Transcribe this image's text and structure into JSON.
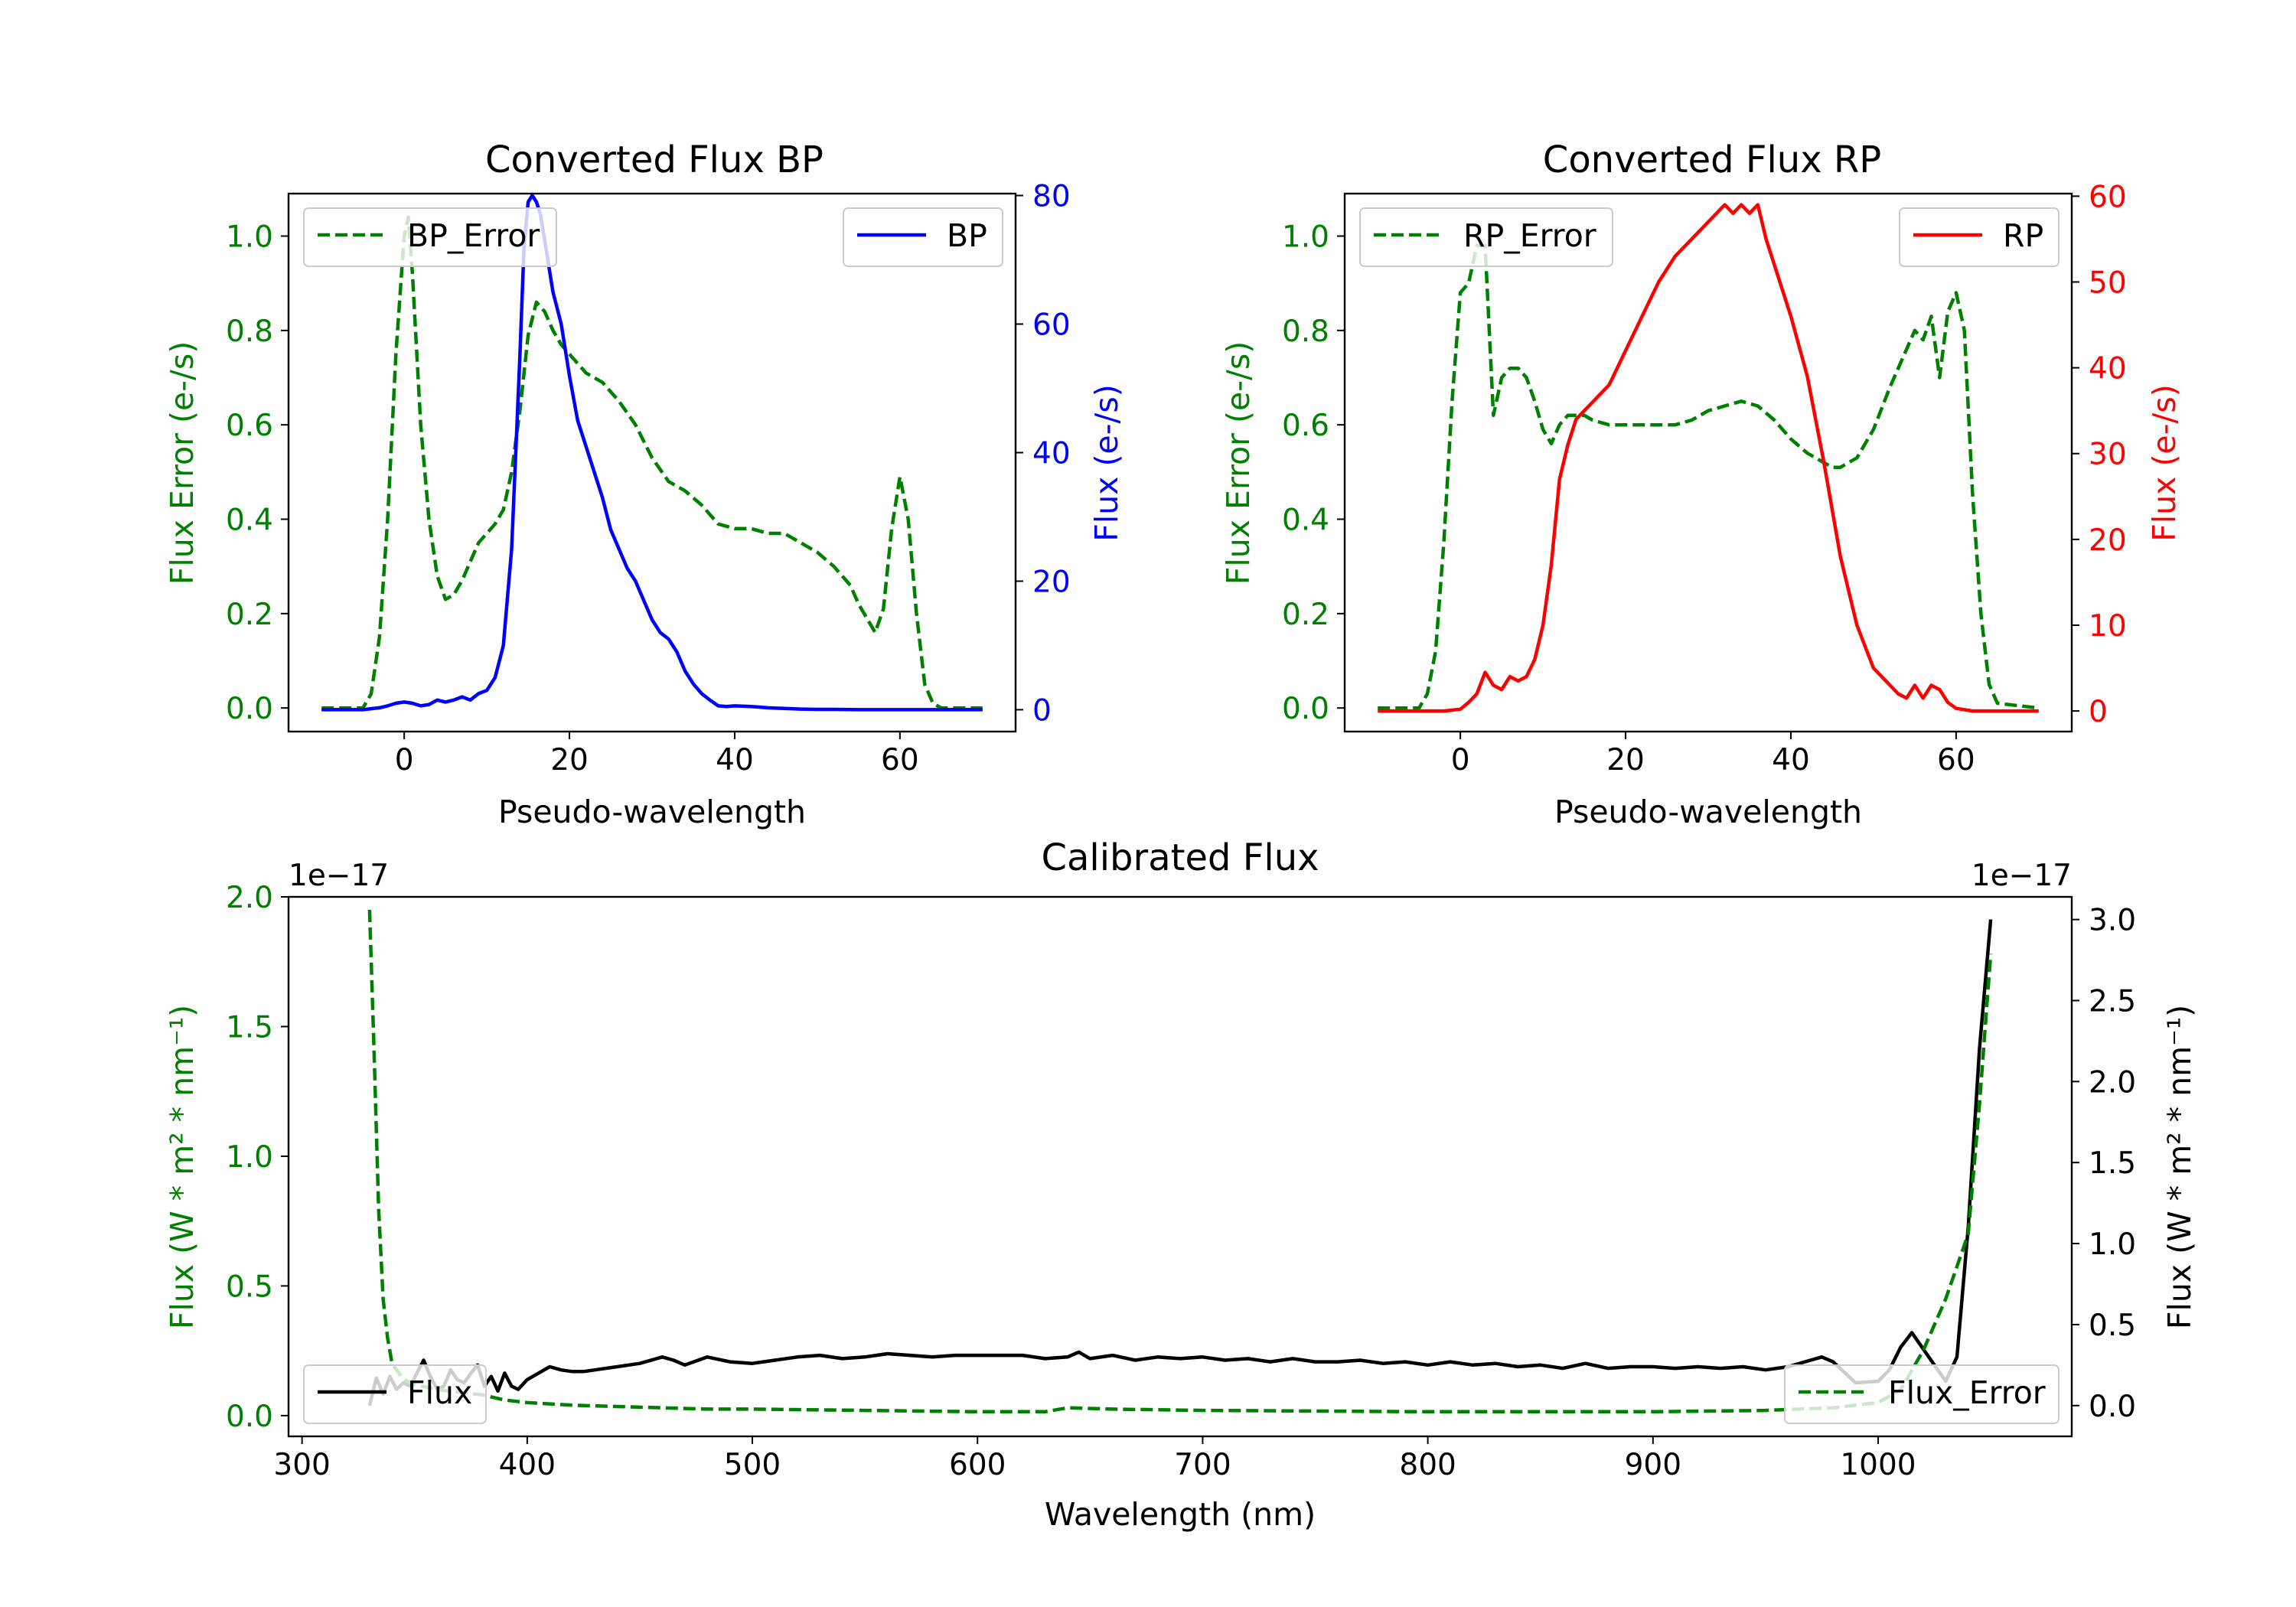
{
  "colors": {
    "error": "#008000",
    "bp": "#0000ff",
    "rp": "#ff0000",
    "flux": "#000000"
  },
  "chart_data": [
    {
      "id": "bp",
      "type": "line",
      "title": "Converted Flux BP",
      "xlabel": "Pseudo-wavelength",
      "ylabel_left": "Flux Error (e-/s)",
      "ylabel_right": "Flux (e-/s)",
      "xlim": [
        -14,
        74
      ],
      "ylim_left": [
        -0.05,
        1.09
      ],
      "ylim_right": [
        -3.4,
        80.3
      ],
      "xticks": [
        0,
        20,
        40,
        60
      ],
      "xticklabels": [
        "0",
        "20",
        "40",
        "60"
      ],
      "yticks_left": [
        0.0,
        0.2,
        0.4,
        0.6,
        0.8,
        1.0
      ],
      "yticklabels_left": [
        "0.0",
        "0.2",
        "0.4",
        "0.6",
        "0.8",
        "1.0"
      ],
      "yticks_right": [
        0,
        20,
        40,
        60,
        80
      ],
      "yticklabels_right": [
        "0",
        "20",
        "40",
        "60",
        "80"
      ],
      "legend_left": "BP_Error",
      "legend_right": "BP",
      "series": [
        {
          "name": "BP_Error",
          "axis": "left",
          "style": "dashed",
          "color": "#008000",
          "x": [
            -10,
            -5,
            -4,
            -3,
            -2,
            -1,
            0,
            0.5,
            1,
            2,
            3,
            4,
            5,
            6,
            7,
            8,
            9,
            10,
            11,
            12,
            13,
            14,
            15,
            16,
            17,
            18,
            19,
            20,
            22,
            24,
            26,
            28,
            30,
            32,
            34,
            36,
            38,
            40,
            42,
            44,
            46,
            48,
            50,
            52,
            54,
            55,
            56,
            57,
            58,
            59,
            60,
            61,
            62,
            63,
            64,
            65,
            70
          ],
          "y": [
            0,
            0,
            0.03,
            0.15,
            0.4,
            0.75,
            1.0,
            1.04,
            0.92,
            0.6,
            0.4,
            0.28,
            0.23,
            0.24,
            0.27,
            0.31,
            0.35,
            0.37,
            0.39,
            0.42,
            0.5,
            0.63,
            0.79,
            0.86,
            0.84,
            0.8,
            0.77,
            0.75,
            0.71,
            0.69,
            0.65,
            0.6,
            0.53,
            0.48,
            0.46,
            0.43,
            0.39,
            0.38,
            0.38,
            0.37,
            0.37,
            0.35,
            0.33,
            0.3,
            0.26,
            0.22,
            0.19,
            0.16,
            0.21,
            0.38,
            0.49,
            0.4,
            0.2,
            0.05,
            0.01,
            0,
            0
          ]
        },
        {
          "name": "BP",
          "axis": "right",
          "style": "solid",
          "color": "#0000ff",
          "x": [
            -10,
            -5,
            -3,
            -2,
            -1,
            0,
            1,
            2,
            3,
            4,
            5,
            6,
            7,
            8,
            9,
            10,
            11,
            12,
            13,
            14,
            14.5,
            15,
            15.5,
            16,
            16.5,
            17,
            18,
            19,
            20,
            21,
            22,
            23,
            24,
            25,
            26,
            27,
            28,
            29,
            30,
            31,
            32,
            33,
            34,
            35,
            36,
            37,
            38,
            39,
            40,
            42,
            44,
            46,
            48,
            50,
            52,
            55,
            60,
            65,
            70
          ],
          "y": [
            0,
            0,
            0.3,
            0.6,
            1.0,
            1.2,
            1.0,
            0.6,
            0.8,
            1.5,
            1.2,
            1.5,
            2.0,
            1.5,
            2.5,
            3.0,
            5.0,
            10,
            25,
            55,
            72,
            79,
            80,
            79,
            77,
            73,
            65,
            60,
            52,
            45,
            41,
            37,
            33,
            28,
            25,
            22,
            20,
            17,
            14,
            12,
            11,
            9,
            6,
            4,
            2.5,
            1.5,
            0.6,
            0.5,
            0.6,
            0.5,
            0.3,
            0.2,
            0.1,
            0.05,
            0.05,
            0,
            0,
            0,
            0
          ]
        }
      ]
    },
    {
      "id": "rp",
      "type": "line",
      "title": "Converted Flux RP",
      "xlabel": "Pseudo-wavelength",
      "ylabel_left": "Flux Error (e-/s)",
      "ylabel_right": "Flux (e-/s)",
      "xlim": [
        -14,
        74
      ],
      "ylim_left": [
        -0.05,
        1.09
      ],
      "ylim_right": [
        -2.4,
        60.3
      ],
      "xticks": [
        0,
        20,
        40,
        60
      ],
      "xticklabels": [
        "0",
        "20",
        "40",
        "60"
      ],
      "yticks_left": [
        0.0,
        0.2,
        0.4,
        0.6,
        0.8,
        1.0
      ],
      "yticklabels_left": [
        "0.0",
        "0.2",
        "0.4",
        "0.6",
        "0.8",
        "1.0"
      ],
      "yticks_right": [
        0,
        10,
        20,
        30,
        40,
        50,
        60
      ],
      "yticklabels_right": [
        "0",
        "10",
        "20",
        "30",
        "40",
        "50",
        "60"
      ],
      "legend_left": "RP_Error",
      "legend_right": "RP",
      "series": [
        {
          "name": "RP_Error",
          "axis": "left",
          "style": "dashed",
          "color": "#008000",
          "x": [
            -10,
            -5,
            -4,
            -3,
            -2,
            -1,
            0,
            1,
            2,
            3,
            4,
            5,
            6,
            7,
            8,
            9,
            10,
            11,
            12,
            13,
            14,
            15,
            16,
            18,
            20,
            22,
            24,
            26,
            28,
            30,
            32,
            34,
            36,
            38,
            40,
            42,
            44,
            45,
            46,
            48,
            50,
            52,
            53,
            54,
            55,
            56,
            57,
            58,
            59,
            60,
            61,
            62,
            63,
            64,
            65,
            70
          ],
          "y": [
            0,
            0,
            0.03,
            0.12,
            0.35,
            0.65,
            0.88,
            0.9,
            0.98,
            0.98,
            0.62,
            0.7,
            0.72,
            0.72,
            0.7,
            0.65,
            0.59,
            0.56,
            0.6,
            0.62,
            0.62,
            0.62,
            0.61,
            0.6,
            0.6,
            0.6,
            0.6,
            0.6,
            0.61,
            0.63,
            0.64,
            0.65,
            0.64,
            0.61,
            0.57,
            0.54,
            0.52,
            0.51,
            0.51,
            0.53,
            0.59,
            0.68,
            0.72,
            0.76,
            0.8,
            0.78,
            0.83,
            0.7,
            0.84,
            0.88,
            0.8,
            0.45,
            0.2,
            0.05,
            0.01,
            0
          ]
        },
        {
          "name": "RP",
          "axis": "right",
          "style": "solid",
          "color": "#ff0000",
          "x": [
            -10,
            -5,
            -2,
            0,
            1,
            2,
            3,
            4,
            5,
            6,
            7,
            8,
            9,
            10,
            11,
            12,
            13,
            14,
            15,
            16,
            17,
            18,
            19,
            20,
            22,
            24,
            26,
            28,
            30,
            31,
            32,
            33,
            34,
            35,
            36,
            37,
            38,
            40,
            42,
            44,
            46,
            48,
            50,
            51,
            52,
            53,
            54,
            55,
            56,
            57,
            58,
            59,
            60,
            62,
            65,
            70
          ],
          "y": [
            0,
            0,
            0,
            0.2,
            1.0,
            2.0,
            4.5,
            3.0,
            2.5,
            4.0,
            3.5,
            4.0,
            6.0,
            10,
            17,
            27,
            31,
            34,
            35,
            36,
            37,
            38,
            40,
            42,
            46,
            50,
            53,
            55,
            57,
            58,
            59,
            58,
            59,
            58,
            59,
            55,
            52,
            46,
            39,
            29,
            18,
            10,
            5,
            4,
            3,
            2,
            1.5,
            3.0,
            1.5,
            3.0,
            2.5,
            1.0,
            0.3,
            0,
            0,
            0
          ]
        }
      ]
    },
    {
      "id": "calibrated",
      "type": "line",
      "title": "Calibrated Flux",
      "xlabel": "Wavelength (nm)",
      "ylabel_left": "Flux (W * m² * nm⁻¹)",
      "ylabel_right": "Flux (W * m² * nm⁻¹)",
      "offset_left": "1e−17",
      "offset_right": "1e−17",
      "xlim": [
        294,
        1086
      ],
      "ylim_left": [
        -0.08,
        2.0
      ],
      "ylim_right": [
        -0.19,
        3.14
      ],
      "xticks": [
        300,
        400,
        500,
        600,
        700,
        800,
        900,
        1000
      ],
      "xticklabels": [
        "300",
        "400",
        "500",
        "600",
        "700",
        "800",
        "900",
        "1000"
      ],
      "yticks_left": [
        0.0,
        0.5,
        1.0,
        1.5,
        2.0
      ],
      "yticklabels_left": [
        "0.0",
        "0.5",
        "1.0",
        "1.5",
        "2.0"
      ],
      "yticks_right": [
        0.0,
        0.5,
        1.0,
        1.5,
        2.0,
        2.5,
        3.0
      ],
      "yticklabels_right": [
        "0.0",
        "0.5",
        "1.0",
        "1.5",
        "2.0",
        "2.5",
        "3.0"
      ],
      "legend_left": "Flux",
      "legend_right": "Flux_Error",
      "series": [
        {
          "name": "Flux",
          "axis": "right",
          "style": "solid",
          "color": "#000000",
          "x": [
            330,
            333,
            336,
            339,
            342,
            345,
            348,
            351,
            354,
            357,
            360,
            363,
            366,
            369,
            372,
            375,
            378,
            381,
            384,
            387,
            390,
            393,
            396,
            400,
            405,
            410,
            415,
            420,
            425,
            430,
            440,
            450,
            460,
            465,
            470,
            480,
            490,
            500,
            510,
            520,
            530,
            540,
            550,
            560,
            570,
            580,
            590,
            600,
            610,
            620,
            630,
            640,
            645,
            650,
            660,
            670,
            680,
            690,
            700,
            710,
            720,
            730,
            740,
            750,
            760,
            770,
            780,
            790,
            800,
            810,
            820,
            830,
            840,
            850,
            860,
            870,
            880,
            890,
            900,
            910,
            920,
            930,
            940,
            950,
            960,
            970,
            975,
            980,
            990,
            1000,
            1005,
            1010,
            1015,
            1020,
            1025,
            1030,
            1035,
            1040,
            1045,
            1050
          ],
          "y": [
            0.0,
            0.17,
            0.07,
            0.18,
            0.1,
            0.14,
            0.12,
            0.2,
            0.28,
            0.18,
            0.1,
            0.12,
            0.22,
            0.16,
            0.14,
            0.2,
            0.25,
            0.12,
            0.18,
            0.09,
            0.2,
            0.12,
            0.1,
            0.16,
            0.2,
            0.24,
            0.22,
            0.21,
            0.21,
            0.22,
            0.24,
            0.26,
            0.3,
            0.28,
            0.25,
            0.3,
            0.27,
            0.26,
            0.28,
            0.3,
            0.31,
            0.29,
            0.3,
            0.32,
            0.31,
            0.3,
            0.31,
            0.31,
            0.31,
            0.31,
            0.29,
            0.3,
            0.33,
            0.29,
            0.31,
            0.28,
            0.3,
            0.29,
            0.3,
            0.28,
            0.29,
            0.27,
            0.29,
            0.27,
            0.27,
            0.28,
            0.26,
            0.27,
            0.25,
            0.27,
            0.25,
            0.26,
            0.24,
            0.25,
            0.23,
            0.26,
            0.23,
            0.24,
            0.24,
            0.23,
            0.24,
            0.23,
            0.24,
            0.22,
            0.24,
            0.28,
            0.3,
            0.27,
            0.14,
            0.15,
            0.22,
            0.36,
            0.45,
            0.35,
            0.25,
            0.15,
            0.3,
            1.1,
            2.2,
            3.0
          ]
        },
        {
          "name": "Flux_Error",
          "axis": "left",
          "style": "dashed",
          "color": "#008000",
          "x": [
            330,
            332,
            334,
            336,
            338,
            340,
            345,
            350,
            360,
            370,
            380,
            390,
            400,
            420,
            440,
            460,
            480,
            500,
            550,
            600,
            630,
            640,
            660,
            700,
            800,
            900,
            950,
            980,
            1000,
            1010,
            1020,
            1030,
            1040,
            1045,
            1050
          ],
          "y": [
            1.95,
            1.4,
            0.8,
            0.45,
            0.3,
            0.2,
            0.14,
            0.12,
            0.1,
            0.09,
            0.08,
            0.06,
            0.05,
            0.04,
            0.035,
            0.03,
            0.025,
            0.025,
            0.02,
            0.015,
            0.015,
            0.03,
            0.025,
            0.02,
            0.015,
            0.015,
            0.02,
            0.03,
            0.05,
            0.1,
            0.25,
            0.45,
            0.7,
            1.2,
            1.78
          ]
        }
      ]
    }
  ]
}
